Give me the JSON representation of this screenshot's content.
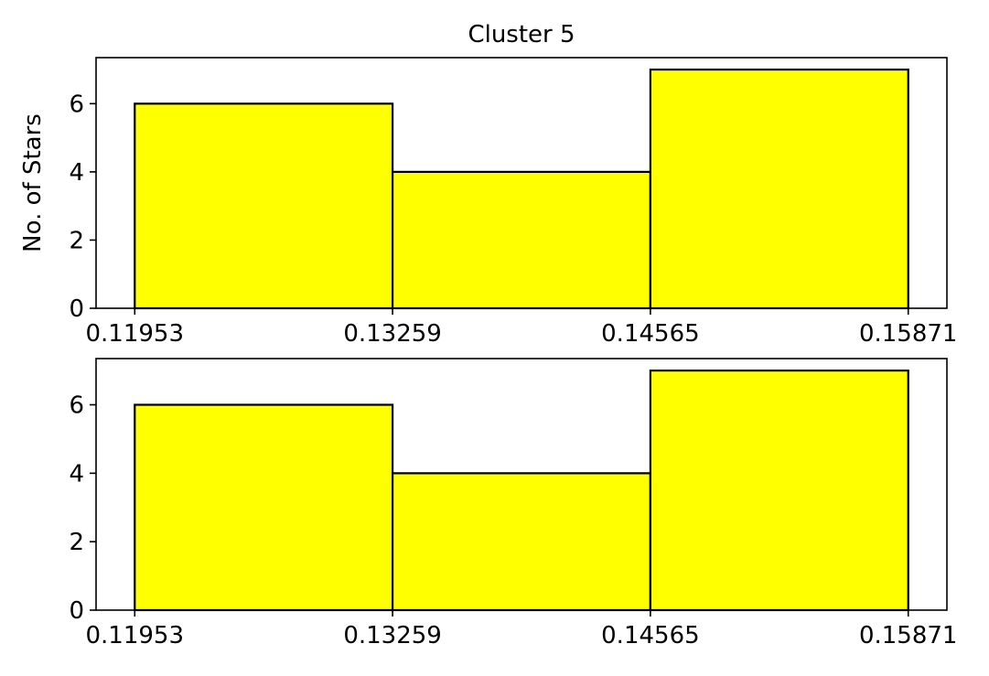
{
  "chart_data": [
    {
      "type": "bar",
      "title": "Cluster 5",
      "xlabel": "",
      "ylabel": "No. of Stars",
      "bin_edges": [
        0.11953,
        0.13259,
        0.14565,
        0.15871
      ],
      "values": [
        6,
        4,
        7
      ],
      "xticks": [
        "0.11953",
        "0.13259",
        "0.14565",
        "0.15871"
      ],
      "yticks": [
        "0",
        "2",
        "4",
        "6"
      ],
      "ylim": [
        0,
        7.35
      ],
      "bar_color": "#ffff00",
      "edge_color": "#000000"
    },
    {
      "type": "bar",
      "title": "",
      "xlabel": "",
      "ylabel": "",
      "bin_edges": [
        0.11953,
        0.13259,
        0.14565,
        0.15871
      ],
      "values": [
        6,
        4,
        7
      ],
      "xticks": [
        "0.11953",
        "0.13259",
        "0.14565",
        "0.15871"
      ],
      "yticks": [
        "0",
        "2",
        "4",
        "6"
      ],
      "ylim": [
        0,
        7.35
      ],
      "bar_color": "#ffff00",
      "edge_color": "#000000"
    }
  ]
}
